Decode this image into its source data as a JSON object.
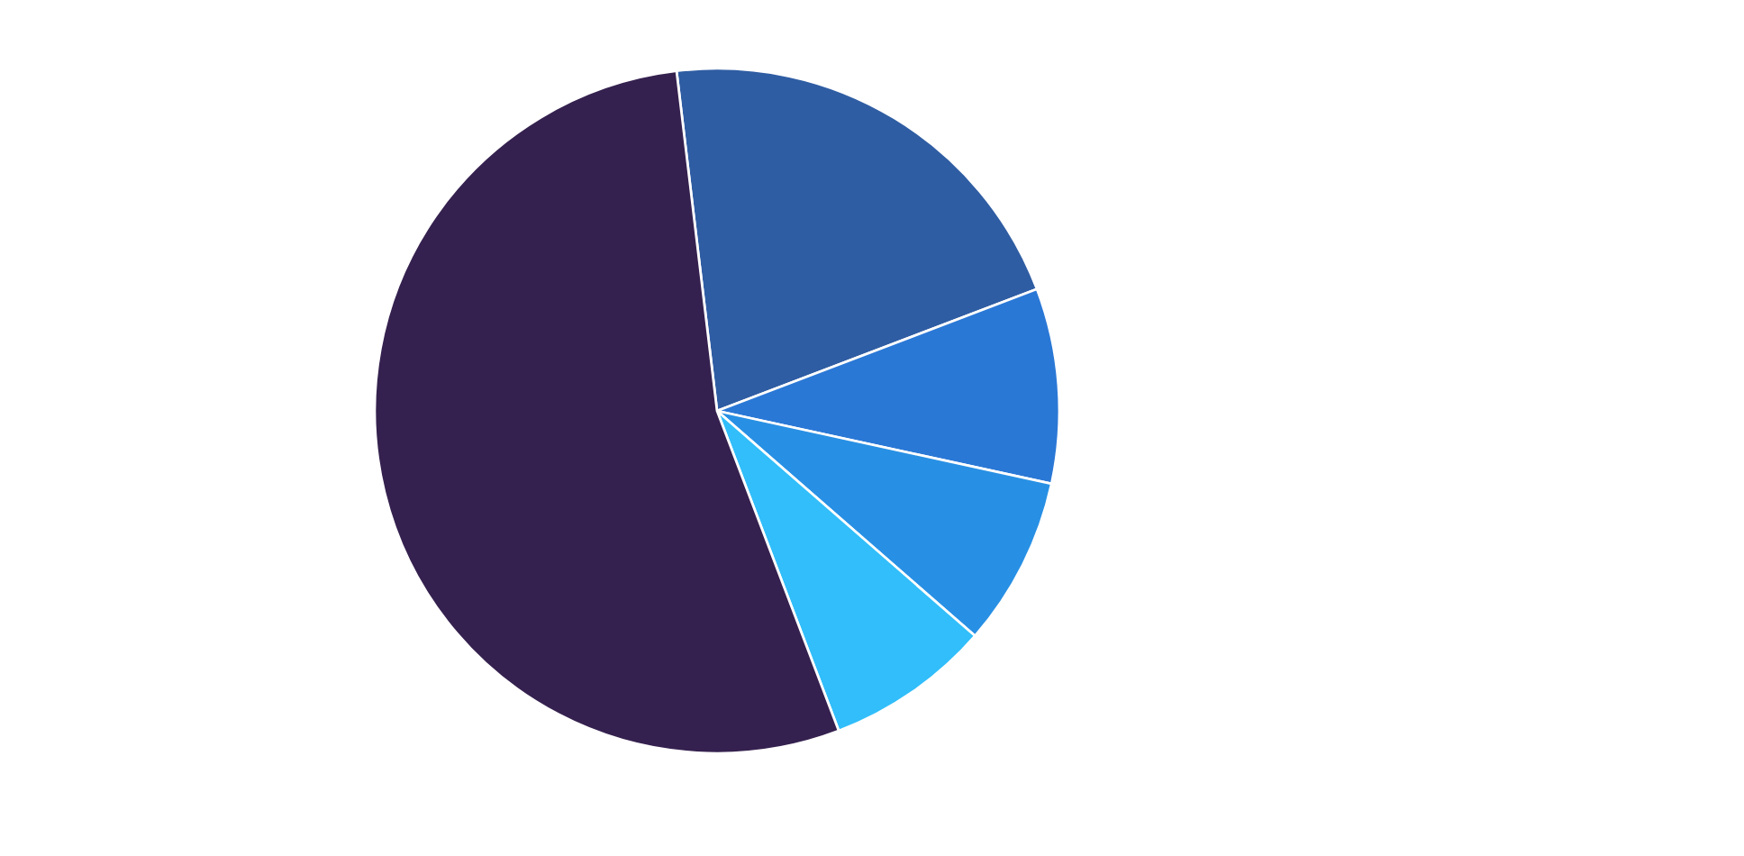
{
  "chart_data": {
    "type": "pie",
    "categories": [
      null,
      null,
      null,
      null,
      null
    ],
    "values": [
      21.1,
      9.2,
      8.0,
      7.8,
      53.9
    ],
    "colors": [
      "#2f5da3",
      "#2a78d6",
      "#2890e4",
      "#31befa",
      "#35214f"
    ]
  }
}
